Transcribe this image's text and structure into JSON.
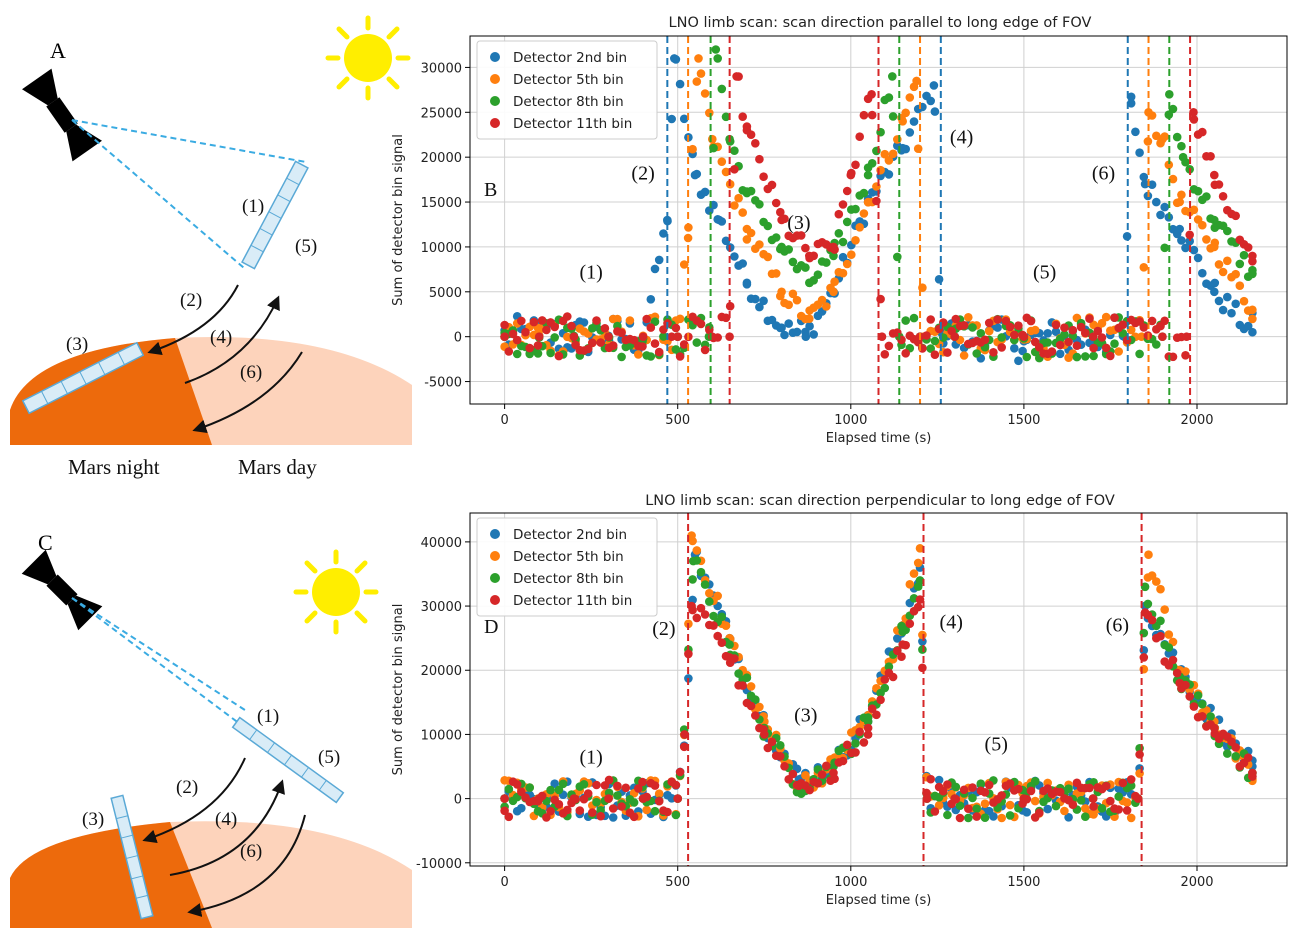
{
  "colors": {
    "series": [
      "#1f77b4",
      "#ff7f0e",
      "#2ca02c",
      "#d62728"
    ],
    "night": "#ed6a0c",
    "day": "#fdd3bb",
    "sun": "#ffee00",
    "fov": "#d9ecf7",
    "fov_edge": "#5aa9d6",
    "beam": "#3aabe2"
  },
  "icons": [
    "satellite-icon",
    "sun-icon"
  ],
  "sketch_top": {
    "letter": "A",
    "labels": [
      "(1)",
      "(2)",
      "(3)",
      "(4)",
      "(5)",
      "(6)"
    ],
    "night_label": "Mars night",
    "day_label": "Mars day"
  },
  "sketch_bottom": {
    "letter": "C",
    "labels": [
      "(1)",
      "(2)",
      "(3)",
      "(4)",
      "(5)",
      "(6)"
    ]
  },
  "chart_data": [
    {
      "type": "scatter",
      "panel_letter": "B",
      "title": "LNO limb scan: scan direction parallel to long edge of FOV",
      "xlabel": "Elapsed time (s)",
      "ylabel": "Sum of detector bin signal",
      "xlim": [
        -100,
        2260
      ],
      "ylim": [
        -7500,
        33500
      ],
      "xticks": [
        0,
        500,
        1000,
        1500,
        2000
      ],
      "yticks": [
        -5000,
        0,
        5000,
        10000,
        15000,
        20000,
        25000,
        30000
      ],
      "grid": true,
      "legend": "top-left",
      "series": [
        {
          "name": "Detector 2nd bin",
          "color": "#1f77b4",
          "x": [
            0,
            100,
            200,
            300,
            400,
            470,
            490,
            550,
            620,
            700,
            800,
            870,
            950,
            1050,
            1150,
            1240,
            1260,
            1300,
            1500,
            1700,
            1790,
            1810,
            1850,
            1950,
            2050,
            2160
          ],
          "y": [
            0,
            100,
            0,
            100,
            0,
            13000,
            31000,
            18000,
            13000,
            6000,
            1000,
            0,
            5000,
            15000,
            21000,
            28000,
            500,
            0,
            -500,
            0,
            0,
            26000,
            17000,
            12000,
            5000,
            500
          ]
        },
        {
          "name": "Detector 5th bin",
          "color": "#ff7f0e",
          "x": [
            0,
            100,
            200,
            300,
            400,
            500,
            530,
            560,
            600,
            700,
            800,
            880,
            950,
            1050,
            1150,
            1190,
            1210,
            1300,
            1500,
            1700,
            1840,
            1860,
            1900,
            1950,
            2050,
            2160
          ],
          "y": [
            0,
            100,
            0,
            0,
            100,
            0,
            11000,
            31000,
            22000,
            12000,
            5000,
            2000,
            5000,
            15000,
            24000,
            28500,
            0,
            0,
            -300,
            0,
            0,
            25000,
            22000,
            15000,
            10000,
            3000
          ]
        },
        {
          "name": "Detector 8th bin",
          "color": "#2ca02c",
          "x": [
            0,
            100,
            200,
            300,
            400,
            500,
            590,
            610,
            650,
            700,
            800,
            880,
            950,
            1050,
            1120,
            1140,
            1200,
            1300,
            1500,
            1700,
            1900,
            1920,
            1960,
            2050,
            2160
          ],
          "y": [
            0,
            -100,
            100,
            0,
            -200,
            0,
            0,
            32000,
            22000,
            16000,
            10000,
            6000,
            9000,
            18000,
            29000,
            0,
            0,
            0,
            -200,
            0,
            0,
            27000,
            20000,
            13000,
            7000
          ]
        },
        {
          "name": "Detector 11th bin",
          "color": "#d62728",
          "x": [
            0,
            100,
            200,
            300,
            400,
            500,
            600,
            650,
            670,
            700,
            800,
            880,
            950,
            1000,
            1060,
            1090,
            1200,
            1300,
            1500,
            1700,
            1900,
            1970,
            1990,
            2050,
            2160
          ],
          "y": [
            0,
            0,
            0,
            0,
            0,
            0,
            0,
            0,
            29000,
            23000,
            13000,
            9000,
            10000,
            18000,
            27000,
            0,
            0,
            0,
            0,
            0,
            0,
            0,
            25000,
            18000,
            9000
          ]
        }
      ],
      "vlines": [
        {
          "x": 470,
          "color": "#1f77b4"
        },
        {
          "x": 530,
          "color": "#ff7f0e"
        },
        {
          "x": 595,
          "color": "#2ca02c"
        },
        {
          "x": 650,
          "color": "#d62728"
        },
        {
          "x": 1080,
          "color": "#d62728"
        },
        {
          "x": 1140,
          "color": "#2ca02c"
        },
        {
          "x": 1200,
          "color": "#ff7f0e"
        },
        {
          "x": 1260,
          "color": "#1f77b4"
        },
        {
          "x": 1800,
          "color": "#1f77b4"
        },
        {
          "x": 1860,
          "color": "#ff7f0e"
        },
        {
          "x": 1920,
          "color": "#2ca02c"
        },
        {
          "x": 1980,
          "color": "#d62728"
        }
      ],
      "annotations": [
        {
          "text": "(1)",
          "x": 250,
          "y": 6500
        },
        {
          "text": "(2)",
          "x": 400,
          "y": 17500
        },
        {
          "text": "(3)",
          "x": 850,
          "y": 12000
        },
        {
          "text": "(4)",
          "x": 1320,
          "y": 21500
        },
        {
          "text": "(5)",
          "x": 1560,
          "y": 6500
        },
        {
          "text": "(6)",
          "x": 1730,
          "y": 17500
        }
      ]
    },
    {
      "type": "scatter",
      "panel_letter": "D",
      "title": "LNO limb scan: scan direction perpendicular to long edge of FOV",
      "xlabel": "Elapsed time (s)",
      "ylabel": "Sum of detector bin signal",
      "xlim": [
        -100,
        2260
      ],
      "ylim": [
        -10500,
        44500
      ],
      "xticks": [
        0,
        500,
        1000,
        1500,
        2000
      ],
      "yticks": [
        -10000,
        0,
        10000,
        20000,
        30000,
        40000
      ],
      "grid": true,
      "legend": "top-left",
      "series": [
        {
          "name": "Detector 2nd bin",
          "color": "#1f77b4",
          "x": [
            0,
            100,
            200,
            300,
            400,
            500,
            520,
            550,
            650,
            750,
            850,
            950,
            1050,
            1150,
            1200,
            1220,
            1300,
            1500,
            1700,
            1830,
            1850,
            1950,
            2050,
            2160
          ],
          "y": [
            0,
            0,
            0,
            0,
            0,
            0,
            10000,
            38000,
            25000,
            12000,
            3000,
            5000,
            13000,
            27000,
            36000,
            0,
            0,
            0,
            0,
            0,
            30000,
            20000,
            12000,
            5000
          ]
        },
        {
          "name": "Detector 5th bin",
          "color": "#ff7f0e",
          "x": [
            0,
            100,
            200,
            300,
            400,
            500,
            520,
            540,
            650,
            750,
            850,
            950,
            1050,
            1150,
            1200,
            1220,
            1300,
            1500,
            1700,
            1830,
            1860,
            1950,
            2050,
            2160
          ],
          "y": [
            0,
            0,
            0,
            0,
            0,
            0,
            10000,
            41000,
            25000,
            12000,
            2000,
            5000,
            13000,
            27000,
            39000,
            0,
            0,
            0,
            0,
            0,
            38000,
            20000,
            12000,
            3000
          ]
        },
        {
          "name": "Detector 8th bin",
          "color": "#2ca02c",
          "x": [
            0,
            100,
            200,
            300,
            400,
            500,
            520,
            545,
            650,
            750,
            850,
            950,
            1050,
            1150,
            1200,
            1220,
            1300,
            1500,
            1700,
            1830,
            1850,
            1950,
            2050,
            2160
          ],
          "y": [
            0,
            0,
            0,
            0,
            0,
            0,
            10000,
            37000,
            24000,
            11000,
            2000,
            5000,
            12000,
            26000,
            34000,
            0,
            0,
            0,
            0,
            0,
            33000,
            19000,
            11000,
            4000
          ]
        },
        {
          "name": "Detector 11th bin",
          "color": "#d62728",
          "x": [
            0,
            100,
            200,
            300,
            400,
            500,
            520,
            540,
            650,
            750,
            850,
            950,
            1050,
            1150,
            1200,
            1220,
            1300,
            1500,
            1700,
            1830,
            1850,
            1950,
            2050,
            2160
          ],
          "y": [
            0,
            0,
            0,
            0,
            0,
            0,
            10000,
            30000,
            22000,
            10000,
            2000,
            4000,
            11000,
            24000,
            31000,
            0,
            0,
            0,
            0,
            0,
            29000,
            18000,
            11000,
            4000
          ]
        }
      ],
      "vlines": [
        {
          "x": 530,
          "color": "#d62728"
        },
        {
          "x": 1210,
          "color": "#d62728"
        },
        {
          "x": 1840,
          "color": "#d62728"
        }
      ],
      "annotations": [
        {
          "text": "(1)",
          "x": 250,
          "y": 5500
        },
        {
          "text": "(2)",
          "x": 460,
          "y": 25500
        },
        {
          "text": "(3)",
          "x": 870,
          "y": 12000
        },
        {
          "text": "(4)",
          "x": 1290,
          "y": 26500
        },
        {
          "text": "(5)",
          "x": 1420,
          "y": 7500
        },
        {
          "text": "(6)",
          "x": 1770,
          "y": 26000
        }
      ]
    }
  ]
}
